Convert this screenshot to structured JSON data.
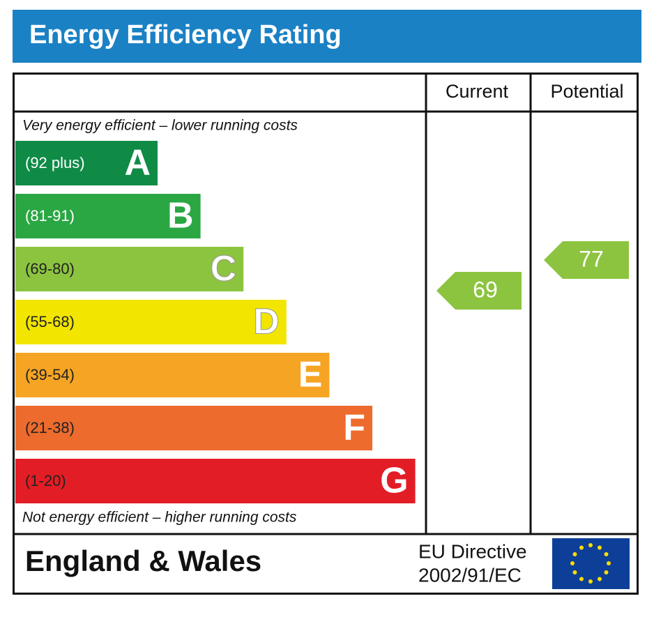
{
  "header": {
    "title": "Energy Efficiency Rating"
  },
  "columns": [
    "Current",
    "Potential"
  ],
  "top_note": "Very energy efficient – lower running costs",
  "bottom_note": "Not energy efficient – higher running costs",
  "bands": [
    {
      "range": "(92 plus)",
      "letter": "A",
      "color": "#0f8b46"
    },
    {
      "range": "(81-91)",
      "letter": "B",
      "color": "#2aa743"
    },
    {
      "range": "(69-80)",
      "letter": "C",
      "color": "#8cc43f"
    },
    {
      "range": "(55-68)",
      "letter": "D",
      "color": "#f2e500"
    },
    {
      "range": "(39-54)",
      "letter": "E",
      "color": "#f6a423"
    },
    {
      "range": "(21-38)",
      "letter": "F",
      "color": "#ec6b2d"
    },
    {
      "range": "(1-20)",
      "letter": "G",
      "color": "#e31d25"
    }
  ],
  "current": {
    "value": "69",
    "color": "#8cc43f"
  },
  "potential": {
    "value": "77",
    "color": "#8cc43f"
  },
  "footer": {
    "region": "England & Wales",
    "directive": [
      "EU Directive",
      "2002/91/EC"
    ]
  }
}
